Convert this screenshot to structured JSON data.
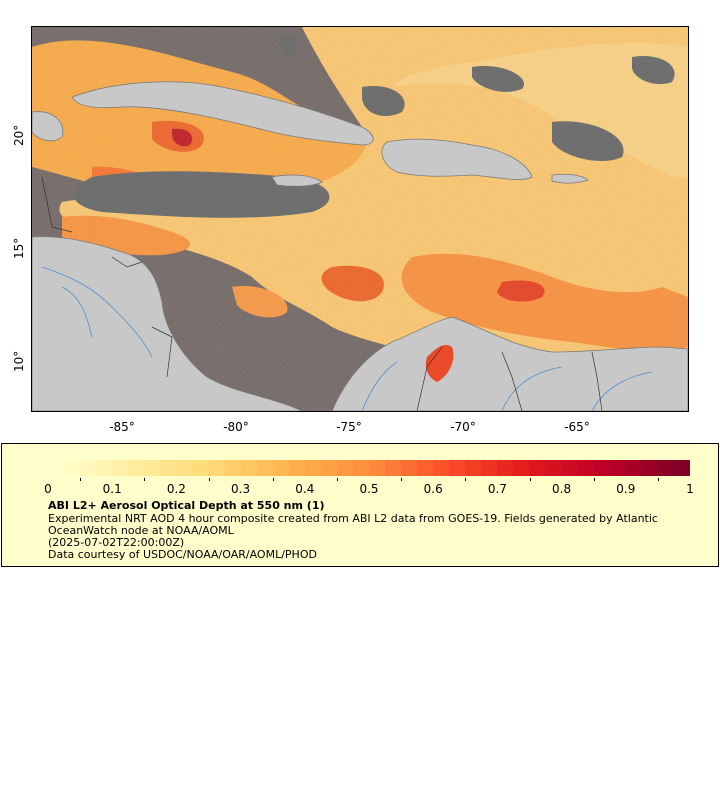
{
  "map": {
    "lon_ticks": [
      "-85°",
      "-80°",
      "-75°",
      "-70°",
      "-65°"
    ],
    "lat_ticks": [
      "20°",
      "15°",
      "10°"
    ],
    "colors": {
      "land": "#c8c8c8",
      "ocean_nodata": "#6f6f6f",
      "river": "#4f8fcf",
      "border": "#7a7a7a"
    }
  },
  "legend": {
    "ticks": [
      "0",
      "0.1",
      "0.2",
      "0.3",
      "0.4",
      "0.5",
      "0.6",
      "0.7",
      "0.8",
      "0.9",
      "1"
    ],
    "range": [
      0,
      1
    ],
    "colormap": [
      "#ffffcc",
      "#ffeda0",
      "#fed976",
      "#feb24c",
      "#fd8d3c",
      "#fc4e2a",
      "#e31a1c",
      "#bd0026",
      "#800026"
    ],
    "title": "ABI L2+ Aerosol Optical Depth at 550 nm (1)",
    "line1": "Experimental NRT AOD 4 hour composite created from ABI L2 data from GOES-19. Fields generated by Atlantic OceanWatch node at NOAA/AOML",
    "line2": "(2025-07-02T22:00:00Z)",
    "line3": "Data courtesy of USDOC/NOAA/OAR/AOML/PHOD"
  }
}
